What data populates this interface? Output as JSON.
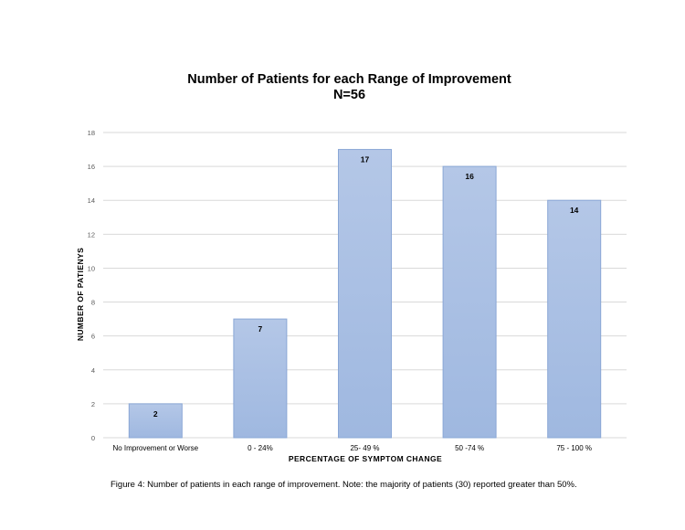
{
  "chart_data": {
    "type": "bar",
    "title_lines": [
      "Number of Patients for each Range of Improvement",
      "N=56"
    ],
    "xlabel": "PERCENTAGE OF SYMPTOM CHANGE",
    "ylabel": "NUMBER OF PATIENYS",
    "categories": [
      "No Improvement or Worse",
      "0 - 24%",
      "25- 49 %",
      "50 -74 %",
      "75 - 100 %"
    ],
    "values": [
      2,
      7,
      17,
      16,
      14
    ],
    "ylim": [
      0,
      18
    ],
    "yticks": [
      0,
      2,
      4,
      6,
      8,
      10,
      12,
      14,
      16,
      18
    ],
    "grid": true,
    "legend": "none",
    "colors": {
      "bar_fill_top": "#b4c7e7",
      "bar_fill_bottom": "#9fb8e0",
      "bar_stroke": "#8aa7d6",
      "grid": "#d9d9d9",
      "tick_text": "#595959"
    }
  },
  "caption": "Figure 4:  Number of patients in each range of improvement. Note: the majority of patients (30) reported greater than 50%."
}
